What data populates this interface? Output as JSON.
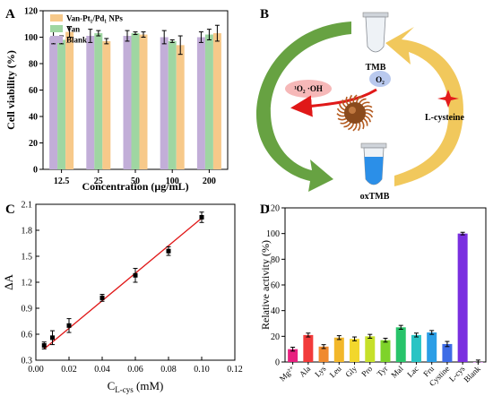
{
  "panel_letters": {
    "a": "A",
    "b": "B",
    "c": "C",
    "d": "D"
  },
  "scheme": {
    "tmb_label": "TMB",
    "oxtmb_label": "oxTMB",
    "lcys_label": "L-cysteine",
    "ros_label": "¹O₂ ·OH",
    "o2_label": "O₂",
    "colors": {
      "green_arrow": "#5a9a32",
      "yellow_arrow": "#f0c24a",
      "tube_blue": "#2b8fe8",
      "ros_bubble": "#f6b8b8",
      "o2_bubble": "#b9c9ee",
      "red_arrow": "#e01818",
      "star": "#e31b1b"
    }
  },
  "chart_data": [
    {
      "id": "A",
      "type": "bar",
      "xlabel": "Concentration (μg/mL)",
      "ylabel": "Cell viability (%)",
      "ylim": [
        0,
        120
      ],
      "yticks": [
        0,
        20,
        40,
        60,
        80,
        100,
        120
      ],
      "categories": [
        "12.5",
        "25",
        "50",
        "100",
        "200"
      ],
      "legend_position": "top-left",
      "series": [
        {
          "name": "Blank",
          "color": "#c2aed8",
          "values": [
            100,
            101,
            101,
            100,
            100
          ],
          "errors": [
            5,
            5,
            4,
            5,
            4
          ]
        },
        {
          "name": "Van",
          "color": "#9fd6a2",
          "values": [
            98,
            103,
            103,
            97,
            102
          ],
          "errors": [
            3,
            2,
            1,
            1,
            4
          ]
        },
        {
          "name": "Van-Pt₁/Pd₁ NPs",
          "color": "#f7c98a",
          "values": [
            104,
            97,
            102,
            94,
            103
          ],
          "errors": [
            4,
            2,
            2,
            7,
            6
          ]
        }
      ],
      "legend_order": [
        "Van-Pt₁/Pd₁ NPs",
        "Van",
        "Blank"
      ]
    },
    {
      "id": "C",
      "type": "scatter",
      "xlabel": "C",
      "xlabel_sub": "L-cys",
      "xlabel_unit": " (mM)",
      "ylabel": "ΔA",
      "xlim": [
        0,
        0.12
      ],
      "ylim": [
        0.3,
        2.1
      ],
      "xticks": [
        "0.00",
        "0.02",
        "0.04",
        "0.06",
        "0.08",
        "0.10",
        "0.12"
      ],
      "yticks": [
        "0.3",
        "0.6",
        "0.9",
        "1.2",
        "1.5",
        "1.8",
        "2.1"
      ],
      "points": [
        {
          "x": 0.005,
          "y": 0.47,
          "err": 0.04
        },
        {
          "x": 0.01,
          "y": 0.56,
          "err": 0.08
        },
        {
          "x": 0.02,
          "y": 0.7,
          "err": 0.08
        },
        {
          "x": 0.04,
          "y": 1.02,
          "err": 0.04
        },
        {
          "x": 0.06,
          "y": 1.28,
          "err": 0.08
        },
        {
          "x": 0.08,
          "y": 1.56,
          "err": 0.05
        },
        {
          "x": 0.1,
          "y": 1.95,
          "err": 0.06
        }
      ],
      "fit_line": {
        "x": [
          0.005,
          0.1
        ],
        "y": [
          0.43,
          1.94
        ],
        "color": "#e01818"
      }
    },
    {
      "id": "D",
      "type": "bar",
      "ylabel": "Relative activity (%)",
      "ylim": [
        0,
        120
      ],
      "yticks": [
        0,
        20,
        40,
        60,
        80,
        100,
        120
      ],
      "categories": [
        "Mg²⁺",
        "Ala",
        "Lys",
        "Leu",
        "Gly",
        "Pro",
        "Tyr",
        "Mal",
        "Lac",
        "Fru",
        "Cystine",
        "L-cys",
        "Blank"
      ],
      "values": [
        10,
        21,
        12,
        19,
        18,
        20,
        17,
        27,
        21,
        23,
        14,
        100,
        0
      ],
      "errors": [
        1.5,
        1.5,
        1.5,
        1.5,
        1.5,
        1.5,
        1.5,
        1.5,
        1.5,
        1.5,
        2,
        1,
        1.5
      ],
      "colors": [
        "#e8207f",
        "#f23a3a",
        "#f08a2e",
        "#f2b72a",
        "#f2d72c",
        "#c6e02a",
        "#7ed32a",
        "#28c46a",
        "#29c4c4",
        "#2b9ee6",
        "#3d6ce6",
        "#7a2fe0",
        "#c04fd8"
      ]
    }
  ]
}
